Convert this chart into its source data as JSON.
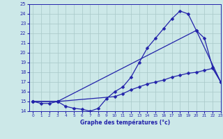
{
  "xlabel": "Graphe des températures (°c)",
  "xlim": [
    -0.5,
    23
  ],
  "ylim": [
    14,
    25
  ],
  "yticks": [
    14,
    15,
    16,
    17,
    18,
    19,
    20,
    21,
    22,
    23,
    24,
    25
  ],
  "xticks": [
    0,
    1,
    2,
    3,
    4,
    5,
    6,
    7,
    8,
    9,
    10,
    11,
    12,
    13,
    14,
    15,
    16,
    17,
    18,
    19,
    20,
    21,
    22,
    23
  ],
  "bg_color": "#cce8e8",
  "grid_color": "#a8c8c8",
  "line_color": "#2222aa",
  "line1_x": [
    0,
    1,
    2,
    3,
    4,
    5,
    6,
    7,
    8,
    9,
    10,
    11,
    12,
    13,
    14,
    15,
    16,
    17,
    18,
    19,
    20,
    21,
    22,
    23
  ],
  "line1_y": [
    15.0,
    14.8,
    14.8,
    15.0,
    14.5,
    14.3,
    14.2,
    14.0,
    14.3,
    15.3,
    16.0,
    16.5,
    17.5,
    19.0,
    20.5,
    21.5,
    22.5,
    23.5,
    24.3,
    24.0,
    22.3,
    21.5,
    18.5,
    17.0
  ],
  "line2_x": [
    0,
    3,
    10,
    11,
    12,
    13,
    14,
    15,
    16,
    17,
    18,
    19,
    20,
    21,
    22,
    23
  ],
  "line2_y": [
    15.0,
    15.0,
    15.5,
    15.8,
    16.2,
    16.5,
    16.8,
    17.0,
    17.2,
    17.5,
    17.7,
    17.9,
    18.0,
    18.2,
    18.4,
    17.0
  ],
  "line3_x": [
    0,
    3,
    20,
    23
  ],
  "line3_y": [
    15.0,
    15.0,
    22.3,
    17.0
  ]
}
